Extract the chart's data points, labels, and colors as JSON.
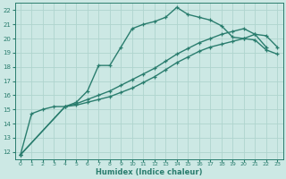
{
  "xlabel": "Humidex (Indice chaleur)",
  "bg_color": "#cce8e4",
  "line_color": "#2a7d6e",
  "grid_color": "#afd4ce",
  "xlim": [
    -0.5,
    23.5
  ],
  "ylim": [
    11.5,
    22.5
  ],
  "xticks": [
    0,
    1,
    2,
    3,
    4,
    5,
    6,
    7,
    8,
    9,
    10,
    11,
    12,
    13,
    14,
    15,
    16,
    17,
    18,
    19,
    20,
    21,
    22,
    23
  ],
  "yticks": [
    12,
    13,
    14,
    15,
    16,
    17,
    18,
    19,
    20,
    21,
    22
  ],
  "line1_x": [
    0,
    1,
    2,
    3,
    4,
    5,
    6,
    7,
    8,
    9,
    10,
    11,
    12,
    13,
    14,
    15,
    16,
    17,
    18,
    19,
    20,
    21,
    22
  ],
  "line1_y": [
    11.8,
    14.7,
    15.0,
    15.2,
    15.2,
    15.5,
    16.3,
    18.1,
    18.1,
    19.4,
    20.7,
    21.0,
    21.2,
    21.5,
    22.2,
    21.7,
    21.5,
    21.3,
    20.9,
    20.1,
    20.0,
    20.3,
    19.4
  ],
  "line2_x": [
    0,
    4,
    5,
    6,
    7,
    8,
    9,
    10,
    11,
    12,
    13,
    14,
    15,
    16,
    17,
    18,
    19,
    20,
    21,
    22,
    23
  ],
  "line2_y": [
    11.8,
    15.2,
    15.4,
    15.7,
    16.0,
    16.3,
    16.7,
    17.1,
    17.5,
    17.9,
    18.4,
    18.9,
    19.3,
    19.7,
    20.0,
    20.3,
    20.5,
    20.7,
    20.3,
    20.2,
    19.4
  ],
  "line3_x": [
    0,
    4,
    5,
    6,
    7,
    8,
    9,
    10,
    11,
    12,
    13,
    14,
    15,
    16,
    17,
    18,
    19,
    20,
    21,
    22,
    23
  ],
  "line3_y": [
    11.8,
    15.2,
    15.3,
    15.5,
    15.7,
    15.9,
    16.2,
    16.5,
    16.9,
    17.3,
    17.8,
    18.3,
    18.7,
    19.1,
    19.4,
    19.6,
    19.8,
    20.0,
    19.9,
    19.2,
    18.9
  ],
  "marker": "+",
  "markersize": 3.5,
  "linewidth": 1.0
}
